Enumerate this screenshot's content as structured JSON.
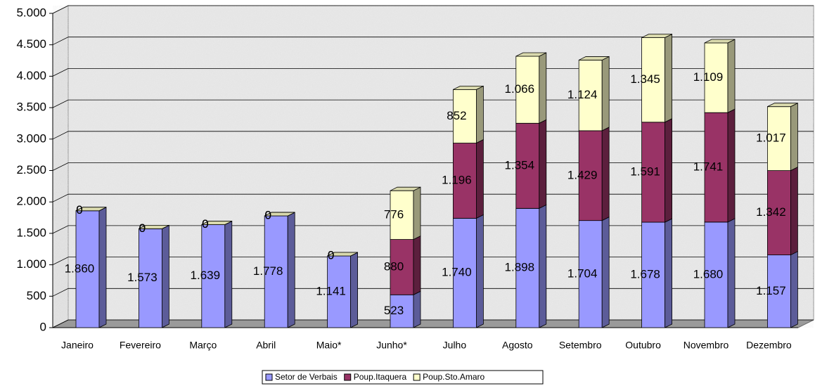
{
  "chart_data": {
    "type": "bar3d_stacked",
    "categories": [
      "Janeiro",
      "Fevereiro",
      "Março",
      "Abril",
      "Maio*",
      "Junho*",
      "Julho",
      "Agosto",
      "Setembro",
      "Outubro",
      "Novembro",
      "Dezembro"
    ],
    "series": [
      {
        "name": "Setor de Verbais",
        "color": "#9999ff",
        "values": [
          1860,
          1573,
          1639,
          1778,
          1141,
          523,
          1740,
          1898,
          1704,
          1678,
          1680,
          1157
        ],
        "value_labels": [
          "1.860",
          "1.573",
          "1.639",
          "1.778",
          "1.141",
          "523",
          "1.740",
          "1.898",
          "1.704",
          "1.678",
          "1.680",
          "1.157"
        ]
      },
      {
        "name": "Poup.Itaquera",
        "color": "#993366",
        "values": [
          0,
          0,
          0,
          0,
          0,
          880,
          1196,
          1354,
          1429,
          1591,
          1741,
          1342
        ],
        "value_labels": [
          "0",
          "0",
          "0",
          "0",
          "0",
          "880",
          "1.196",
          "1.354",
          "1.429",
          "1.591",
          "1.741",
          "1.342"
        ]
      },
      {
        "name": "Poup.Sto.Amaro",
        "color": "#ffffcc",
        "values": [
          0,
          0,
          0,
          0,
          0,
          776,
          852,
          1066,
          1124,
          1345,
          1109,
          1017
        ],
        "value_labels": [
          "0",
          "0",
          "0",
          "0",
          "0",
          "776",
          "852",
          "1.066",
          "1.124",
          "1.345",
          "1.109",
          "1.017"
        ]
      }
    ],
    "ylim": [
      0,
      5000
    ],
    "yticks": [
      0,
      500,
      {
        "value": 1000,
        "label": "1.000"
      },
      {
        "value": 1500,
        "label": "1.500"
      },
      {
        "value": 2000,
        "label": "2.000"
      },
      {
        "value": 2500,
        "label": "2.500"
      },
      {
        "value": 3000,
        "label": "3.000"
      },
      {
        "value": 3500,
        "label": "3.500"
      },
      {
        "value": 4000,
        "label": "4.000"
      },
      {
        "value": 4500,
        "label": "4.500"
      },
      {
        "value": 5000,
        "label": "5.000"
      }
    ],
    "grid": true,
    "legend": "bottom"
  }
}
